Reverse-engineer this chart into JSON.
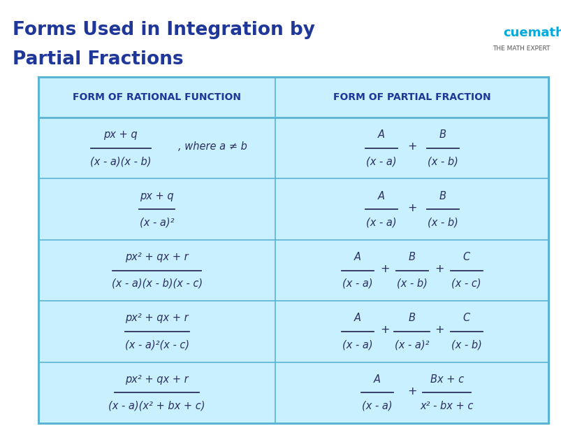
{
  "title_line1": "Forms Used in Integration by",
  "title_line2": "Partial Fractions",
  "title_color": "#1e3799",
  "bg_color": "#ffffff",
  "table_bg": "#c8f0ff",
  "table_border": "#5ab4d4",
  "header_text_color": "#1e3799",
  "cell_text_color": "#2c3060",
  "col1_header": "FORM OF RATIONAL FUNCTION",
  "col2_header": "FORM OF PARTIAL FRACTION",
  "cuemath_color": "#00aadd",
  "cuemath_sub_color": "#555555",
  "left_fractions": [
    [
      "px + q",
      "(x - a)(x - b)",
      ", where a ≠ b"
    ],
    [
      "px + q",
      "(x - a)²",
      ""
    ],
    [
      "px² + qx + r",
      "(x - a)(x - b)(x - c)",
      ""
    ],
    [
      "px² + qx + r",
      "(x - a)²(x - c)",
      ""
    ],
    [
      "px² + qx + r",
      "(x - a)(x² + bx + c)",
      ""
    ]
  ],
  "right_fractions": [
    [
      [
        "A",
        "(x - a)"
      ],
      [
        "B",
        "(x - b)"
      ]
    ],
    [
      [
        "A",
        "(x - a)"
      ],
      [
        "B",
        "(x - b)"
      ]
    ],
    [
      [
        "A",
        "(x - a)"
      ],
      [
        "B",
        "(x - b)"
      ],
      [
        "C",
        "(x - c)"
      ]
    ],
    [
      [
        "A",
        "(x - a)"
      ],
      [
        "B",
        "(x - a)²"
      ],
      [
        "C",
        "(x - b)"
      ]
    ],
    [
      [
        "A",
        "(x - a)"
      ],
      [
        "Bx + c",
        "x² - bx + c"
      ]
    ]
  ],
  "fig_width": 8.04,
  "fig_height": 6.19,
  "dpi": 100
}
